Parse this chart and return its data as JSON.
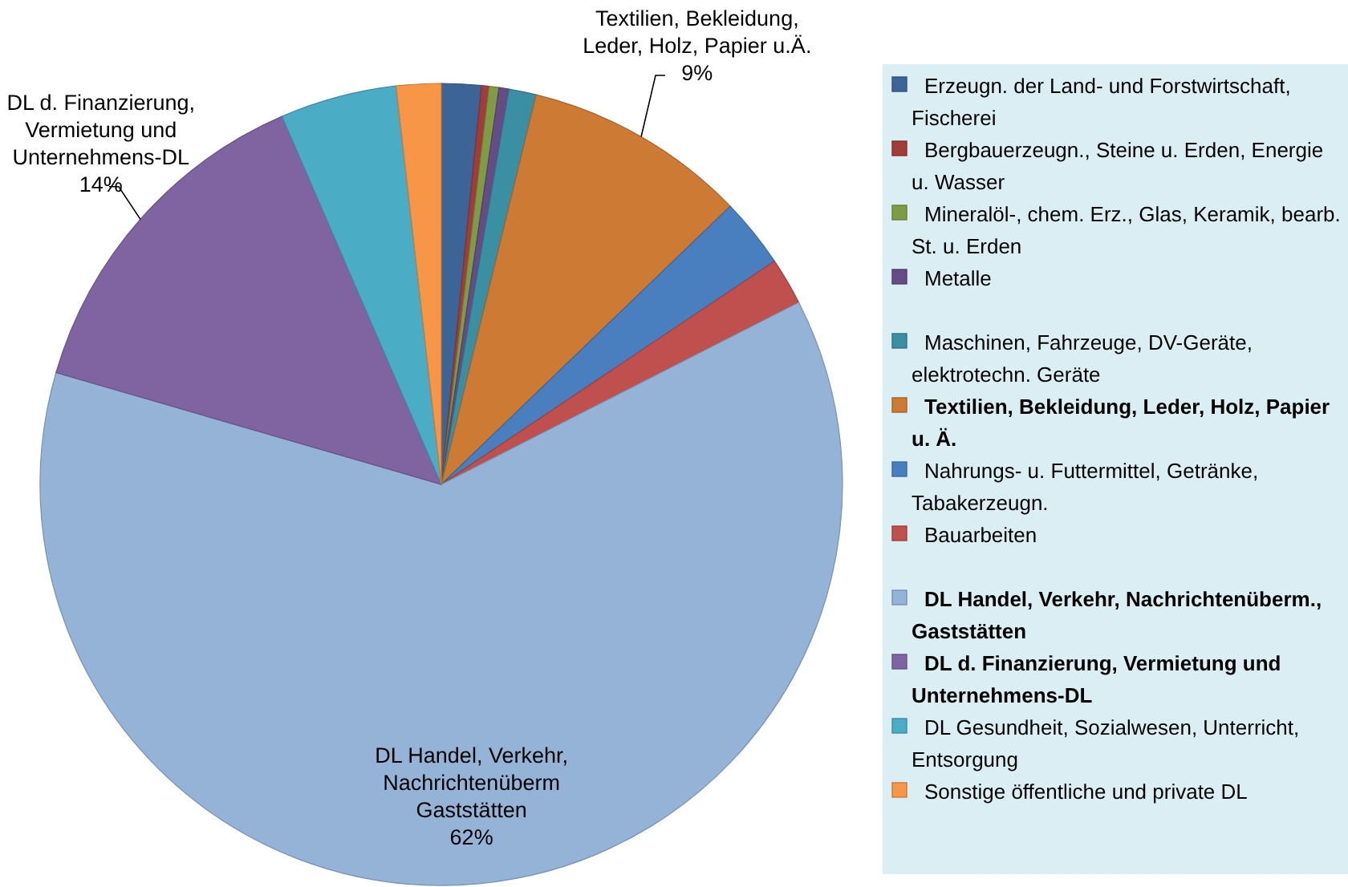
{
  "chart_data": {
    "type": "pie",
    "categories": [
      "Erzeugn. der Land- und Forstwirtschaft, Fischerei",
      "Bergbauerzeugn., Steine u. Erden, Energie u. Wasser",
      "Mineralöl-, chem. Erz., Glas, Keramik, bearb. St. u. Erden",
      "Metalle",
      "Maschinen, Fahrzeuge, DV-Geräte, elektrotechn. Geräte",
      "Textilien, Bekleidung, Leder, Holz, Papier u. Ä.",
      "Nahrungs- u. Futtermittel, Getränke, Tabakerzeugn.",
      "Bauarbeiten",
      "DL Handel, Verkehr, Nachrichtenüberm., Gaststätten",
      "DL d. Finanzierung, Vermietung und Unternehmens-DL",
      "DL Gesundheit, Sozialwesen, Unterricht, Entsorgung",
      "Sonstige öffentliche und private DL"
    ],
    "values": [
      1.6,
      0.3,
      0.4,
      0.4,
      1.1,
      9,
      2.8,
      1.9,
      62,
      14,
      4.7,
      1.8
    ],
    "colors": [
      "#3c6496",
      "#a33b3a",
      "#7f9c45",
      "#654c84",
      "#3b8fa3",
      "#cd7a35",
      "#4a7fbf",
      "#c0504d",
      "#95b3d7",
      "#8064a2",
      "#4bacc6",
      "#f79646"
    ],
    "value_labels": [
      null,
      null,
      null,
      null,
      null,
      "Textilien, Bekleidung,\nLeder, Holz, Papier u.Ä.\n9%",
      null,
      null,
      "DL Handel, Verkehr,\nNachrichtenüberm\nGaststätten\n62%",
      "DL d. Finanzierung,\nVermietung und\nUnternehmens-DL\n14%",
      null,
      null
    ],
    "legend": "right"
  }
}
